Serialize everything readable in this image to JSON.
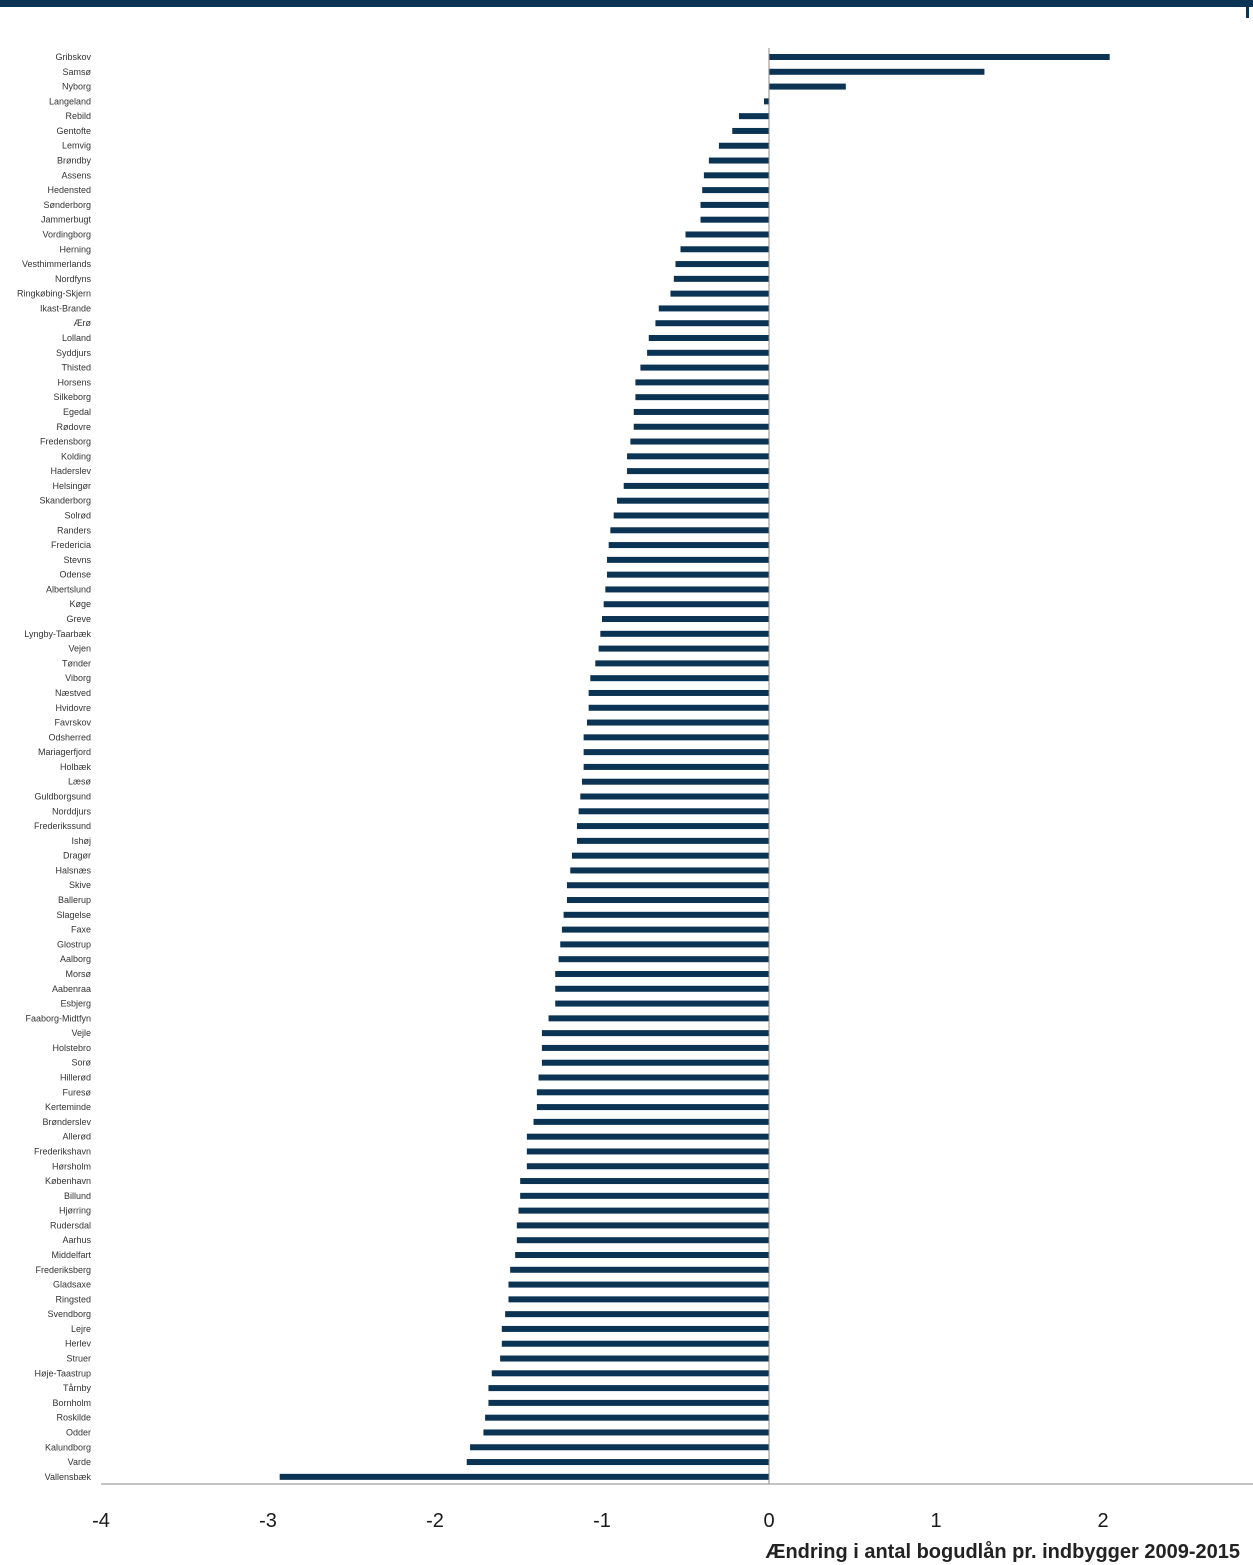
{
  "chart_data": {
    "type": "bar",
    "orientation": "horizontal",
    "xlabel": "Ændring i antal bogudlån pr. indbygger 2009-2015",
    "xlim": [
      -4,
      2.9
    ],
    "xticks": [
      "-4",
      "-3",
      "-2",
      "-1",
      "0",
      "1",
      "2"
    ],
    "bar_color": "#0b3354",
    "grid": false,
    "legend": "none",
    "categories": [
      "Gribskov",
      "Samsø",
      "Nyborg",
      "Langeland",
      "Rebild",
      "Gentofte",
      "Lemvig",
      "Brøndby",
      "Assens",
      "Hedensted",
      "Sønderborg",
      "Jammerbugt",
      "Vordingborg",
      "Herning",
      "Vesthimmerlands",
      "Nordfyns",
      "Ringkøbing-Skjern",
      "Ikast-Brande",
      "Ærø",
      "Lolland",
      "Syddjurs",
      "Thisted",
      "Horsens",
      "Silkeborg",
      "Egedal",
      "Rødovre",
      "Fredensborg",
      "Kolding",
      "Haderslev",
      "Helsingør",
      "Skanderborg",
      "Solrød",
      "Randers",
      "Fredericia",
      "Stevns",
      "Odense",
      "Albertslund",
      "Køge",
      "Greve",
      "Lyngby-Taarbæk",
      "Vejen",
      "Tønder",
      "Viborg",
      "Næstved",
      "Hvidovre",
      "Favrskov",
      "Odsherred",
      "Mariagerfjord",
      "Holbæk",
      "Læsø",
      "Guldborgsund",
      "Norddjurs",
      "Frederikssund",
      "Ishøj",
      "Dragør",
      "Halsnæs",
      "Skive",
      "Ballerup",
      "Slagelse",
      "Faxe",
      "Glostrup",
      "Aalborg",
      "Morsø",
      "Aabenraa",
      "Esbjerg",
      "Faaborg-Midtfyn",
      "Vejle",
      "Holstebro",
      "Sorø",
      "Hillerød",
      "Furesø",
      "Kerteminde",
      "Brønderslev",
      "Allerød",
      "Frederikshavn",
      "Hørsholm",
      "København",
      "Billund",
      "Hjørring",
      "Rudersdal",
      "Aarhus",
      "Middelfart",
      "Frederiksberg",
      "Gladsaxe",
      "Ringsted",
      "Svendborg",
      "Lejre",
      "Herlev",
      "Struer",
      "Høje-Taastrup",
      "Tårnby",
      "Bornholm",
      "Roskilde",
      "Odder",
      "Kalundborg",
      "Varde",
      "Vallensbæk"
    ],
    "values": [
      2.04,
      1.29,
      0.46,
      -0.03,
      -0.18,
      -0.22,
      -0.3,
      -0.36,
      -0.39,
      -0.4,
      -0.41,
      -0.41,
      -0.5,
      -0.53,
      -0.56,
      -0.57,
      -0.59,
      -0.66,
      -0.68,
      -0.72,
      -0.73,
      -0.77,
      -0.8,
      -0.8,
      -0.81,
      -0.81,
      -0.83,
      -0.85,
      -0.85,
      -0.87,
      -0.91,
      -0.93,
      -0.95,
      -0.96,
      -0.97,
      -0.97,
      -0.98,
      -0.99,
      -1.0,
      -1.01,
      -1.02,
      -1.04,
      -1.07,
      -1.08,
      -1.08,
      -1.09,
      -1.11,
      -1.11,
      -1.11,
      -1.12,
      -1.13,
      -1.14,
      -1.15,
      -1.15,
      -1.18,
      -1.19,
      -1.21,
      -1.21,
      -1.23,
      -1.24,
      -1.25,
      -1.26,
      -1.28,
      -1.28,
      -1.28,
      -1.32,
      -1.36,
      -1.36,
      -1.36,
      -1.38,
      -1.39,
      -1.39,
      -1.41,
      -1.45,
      -1.45,
      -1.45,
      -1.49,
      -1.49,
      -1.5,
      -1.51,
      -1.51,
      -1.52,
      -1.55,
      -1.56,
      -1.56,
      -1.58,
      -1.6,
      -1.6,
      -1.61,
      -1.66,
      -1.68,
      -1.68,
      -1.7,
      -1.71,
      -1.79,
      -1.81,
      -2.93
    ]
  }
}
